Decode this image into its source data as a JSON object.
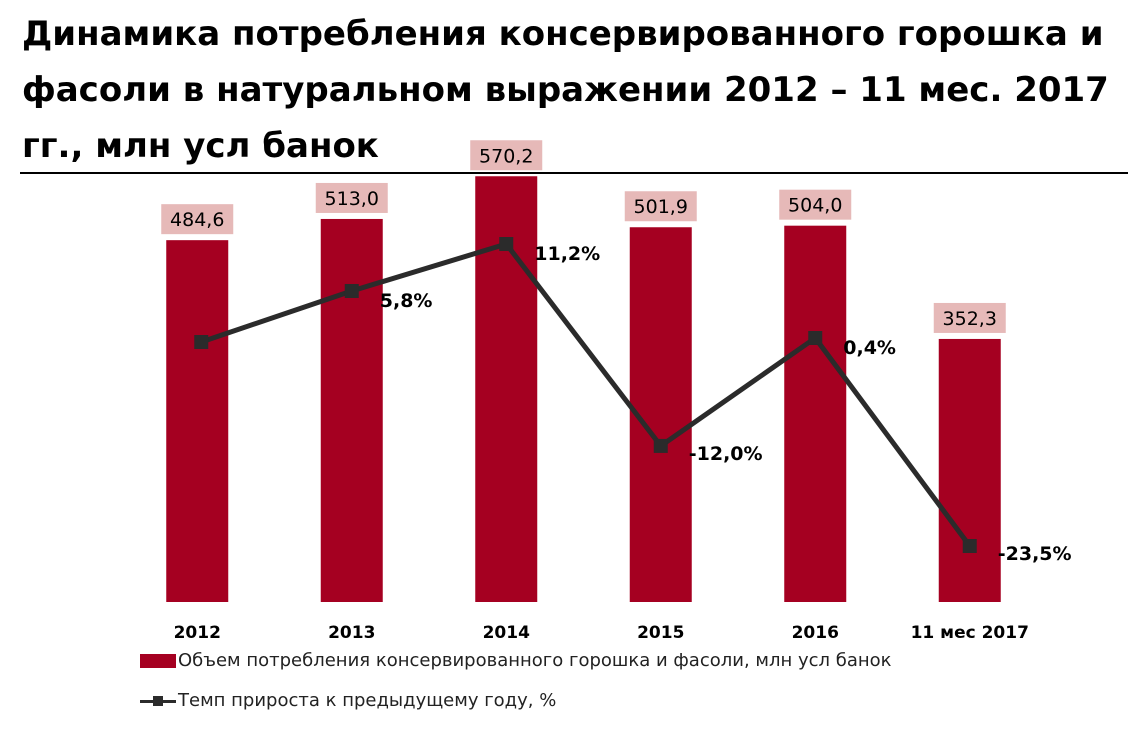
{
  "title": "Динамика потребления консервированного горошка и фасоли в натуральном выражении 2012 – 11 мес. 2017 гг., млн усл банок",
  "colors": {
    "bar": "#a50021",
    "label_bg": "#e6b9b8",
    "line": "#2b2b2b"
  },
  "chart_data": {
    "type": "bar",
    "categories": [
      "2012",
      "2013",
      "2014",
      "2015",
      "2016",
      "11 мес 2017"
    ],
    "series": [
      {
        "name": "Объем потребления консервированного горошка и фасоли, млн усл банок",
        "type": "bar",
        "values": [
          484.6,
          513.0,
          570.2,
          501.9,
          504.0,
          352.3
        ],
        "labels": [
          "484,6",
          "513,0",
          "570,2",
          "501,9",
          "504,0",
          "352,3"
        ]
      },
      {
        "name": "Темп прироста к предыдущему году, %",
        "type": "line",
        "values": [
          null,
          5.8,
          11.2,
          -12.0,
          0.4,
          -23.5
        ],
        "labels": [
          "",
          "5,8%",
          "11,2%",
          "-12,0%",
          "0,4%",
          "-23,5%"
        ]
      }
    ],
    "title": "Динамика потребления консервированного горошка и фасоли в натуральном выражении 2012 – 11 мес. 2017 гг., млн усл банок",
    "xlabel": "",
    "ylabel": "",
    "ylim": [
      0,
      600
    ],
    "grid": false,
    "legend_position": "bottom-left"
  }
}
